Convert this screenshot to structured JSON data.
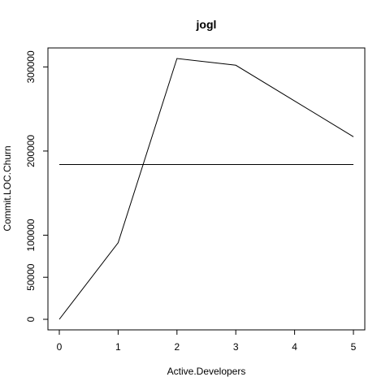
{
  "chart_data": {
    "type": "line",
    "title": "jogl",
    "xlabel": "Active.Developers",
    "ylabel": "Commit.LOC.Churn",
    "xlim": [
      0,
      5
    ],
    "ylim": [
      0,
      310000
    ],
    "x_ticks": [
      0,
      1,
      2,
      3,
      4,
      5
    ],
    "y_ticks": [
      0,
      50000,
      100000,
      200000,
      300000
    ],
    "grid": false,
    "legend": "none",
    "series": [
      {
        "x": [
          0,
          1,
          2,
          3,
          5
        ],
        "values": [
          0,
          91000,
          310000,
          302000,
          217000
        ]
      },
      {
        "x": [
          0,
          5
        ],
        "values": [
          184000,
          184000
        ]
      }
    ]
  }
}
